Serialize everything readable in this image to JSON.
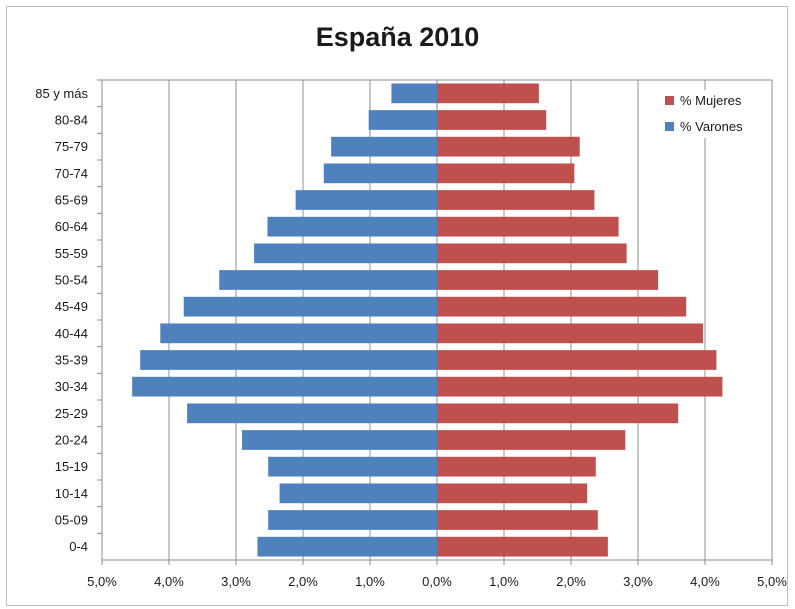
{
  "chart_data": {
    "type": "bar",
    "orientation": "horizontal",
    "layout": "population-pyramid",
    "title": "España 2010",
    "categories": [
      "85 y más",
      "80-84",
      "75-79",
      "70-74",
      "65-69",
      "60-64",
      "55-59",
      "50-54",
      "45-49",
      "40-44",
      "35-39",
      "30-34",
      "25-29",
      "20-24",
      "15-19",
      "10-14",
      "05-09",
      "0-4"
    ],
    "series": [
      {
        "name": "% Mujeres",
        "color": "#c0504d",
        "side": "right",
        "values": [
          1.52,
          1.63,
          2.13,
          2.05,
          2.35,
          2.71,
          2.83,
          3.3,
          3.72,
          3.97,
          4.17,
          4.26,
          3.6,
          2.81,
          2.37,
          2.24,
          2.4,
          2.55
        ]
      },
      {
        "name": "% Varones",
        "color": "#4f81bd",
        "side": "left",
        "values": [
          0.68,
          1.02,
          1.58,
          1.69,
          2.11,
          2.53,
          2.73,
          3.25,
          3.78,
          4.13,
          4.43,
          4.55,
          3.73,
          2.91,
          2.52,
          2.35,
          2.52,
          2.68
        ]
      }
    ],
    "xlim": [
      -5,
      5
    ],
    "x_ticks": [
      "5,0%",
      "4,0%",
      "3,0%",
      "2,0%",
      "1,0%",
      "0,0%",
      "1,0%",
      "2,0%",
      "3,0%",
      "4,0%",
      "5,0%"
    ],
    "grid": "vertical",
    "legend_position": "top-right"
  }
}
